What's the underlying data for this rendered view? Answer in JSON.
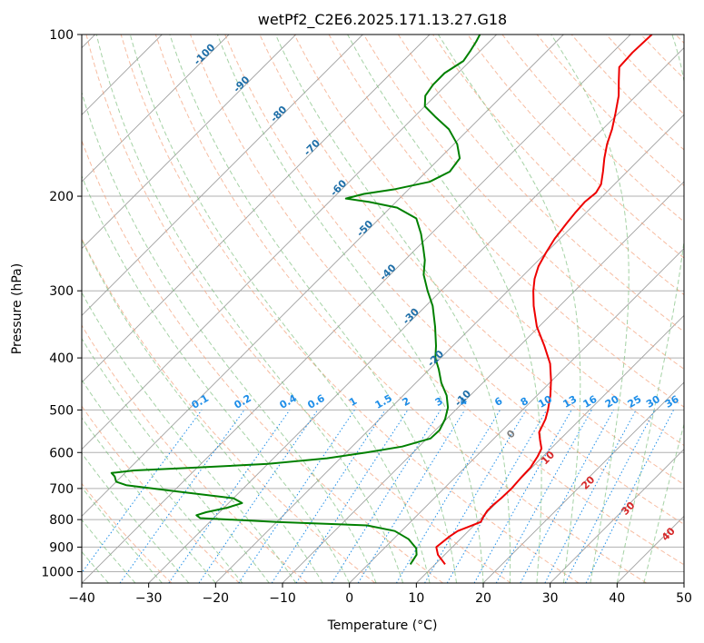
{
  "chart_data": {
    "type": "line",
    "title": "wetPf2_C2E6.2025.171.13.27.G18",
    "xlabel": "Temperature (°C)",
    "ylabel": "Pressure (hPa)",
    "xlim": [
      -40,
      50
    ],
    "ylim": [
      1050,
      100
    ],
    "y_scale": "log",
    "skew": true,
    "grid": true,
    "x_ticks": [
      -40,
      -30,
      -20,
      -10,
      0,
      10,
      20,
      30,
      40,
      50
    ],
    "y_ticks": [
      100,
      200,
      300,
      400,
      500,
      600,
      700,
      800,
      900,
      1000
    ],
    "isotherm_labels": [
      -100,
      -90,
      -80,
      -70,
      -60,
      -50,
      -40,
      -30,
      -20,
      -10
    ],
    "mixing_ratio_labels": [
      "0.1",
      "0.2",
      "0.4",
      "0.6",
      "1",
      "1.5",
      "2",
      "3",
      "4",
      "6",
      "8",
      "10",
      "13",
      "16",
      "20",
      "25",
      "30",
      "36"
    ],
    "mixing_ratio_values": [
      0.1,
      0.2,
      0.4,
      0.6,
      1,
      1.5,
      2,
      3,
      4,
      6,
      8,
      10,
      13,
      16,
      20,
      25,
      30,
      36
    ],
    "moist_adiabat_labels": [
      0,
      10,
      20,
      30,
      40
    ],
    "colors": {
      "temperature": "#ee0000",
      "dewpoint": "#008000",
      "dry_adiabat": "#f4a582",
      "moist_adiabat": "#7fbf7f",
      "mixing_ratio": "#1e8ee8",
      "isotherm": "#a0a0a0",
      "isobar": "#b0b0b0"
    },
    "series": [
      {
        "name": "",
        "role": "temperature",
        "points": [
          [
            969,
            11.5
          ],
          [
            930,
            9.0
          ],
          [
            900,
            7.6
          ],
          [
            880,
            7.8
          ],
          [
            860,
            8.0
          ],
          [
            840,
            8.4
          ],
          [
            822,
            9.6
          ],
          [
            808,
            10.5
          ],
          [
            790,
            10.1
          ],
          [
            770,
            9.8
          ],
          [
            750,
            9.8
          ],
          [
            730,
            10.0
          ],
          [
            700,
            10.1
          ],
          [
            670,
            9.9
          ],
          [
            640,
            9.8
          ],
          [
            610,
            9.2
          ],
          [
            590,
            8.6
          ],
          [
            570,
            7.2
          ],
          [
            550,
            5.8
          ],
          [
            520,
            4.8
          ],
          [
            500,
            3.8
          ],
          [
            470,
            2.0
          ],
          [
            440,
            -0.2
          ],
          [
            410,
            -2.8
          ],
          [
            380,
            -6.3
          ],
          [
            350,
            -10.3
          ],
          [
            320,
            -13.9
          ],
          [
            300,
            -16.2
          ],
          [
            285,
            -17.8
          ],
          [
            270,
            -19.1
          ],
          [
            255,
            -20.0
          ],
          [
            240,
            -20.8
          ],
          [
            225,
            -21.3
          ],
          [
            215,
            -21.6
          ],
          [
            205,
            -21.8
          ],
          [
            197,
            -21.5
          ],
          [
            190,
            -22.0
          ],
          [
            180,
            -23.6
          ],
          [
            170,
            -25.4
          ],
          [
            160,
            -27.1
          ],
          [
            150,
            -28.6
          ],
          [
            140,
            -30.5
          ],
          [
            130,
            -32.6
          ],
          [
            122,
            -34.8
          ],
          [
            115,
            -36.8
          ],
          [
            108,
            -37.0
          ],
          [
            100,
            -36.8
          ]
        ]
      },
      {
        "name": "",
        "role": "dewpoint",
        "points": [
          [
            969,
            6.3
          ],
          [
            930,
            5.8
          ],
          [
            905,
            4.8
          ],
          [
            870,
            2.3
          ],
          [
            840,
            -1.0
          ],
          [
            820,
            -6.0
          ],
          [
            808,
            -20.0
          ],
          [
            795,
            -32.0
          ],
          [
            785,
            -33.0
          ],
          [
            775,
            -32.0
          ],
          [
            760,
            -29.5
          ],
          [
            745,
            -28.0
          ],
          [
            730,
            -30.0
          ],
          [
            710,
            -39.0
          ],
          [
            690,
            -48.0
          ],
          [
            680,
            -50.0
          ],
          [
            665,
            -51.0
          ],
          [
            655,
            -52.0
          ],
          [
            648,
            -49.0
          ],
          [
            640,
            -40.0
          ],
          [
            630,
            -30.0
          ],
          [
            615,
            -22.0
          ],
          [
            600,
            -17.0
          ],
          [
            585,
            -12.5
          ],
          [
            565,
            -9.5
          ],
          [
            545,
            -9.4
          ],
          [
            520,
            -10.2
          ],
          [
            495,
            -11.5
          ],
          [
            470,
            -13.5
          ],
          [
            445,
            -16.2
          ],
          [
            420,
            -18.6
          ],
          [
            400,
            -20.8
          ],
          [
            380,
            -22.5
          ],
          [
            350,
            -25.5
          ],
          [
            320,
            -29.0
          ],
          [
            300,
            -32.0
          ],
          [
            280,
            -35.0
          ],
          [
            263,
            -37.0
          ],
          [
            250,
            -39.0
          ],
          [
            235,
            -41.5
          ],
          [
            220,
            -44.5
          ],
          [
            210,
            -49.0
          ],
          [
            205,
            -54.0
          ],
          [
            202,
            -58.0
          ],
          [
            198,
            -56.0
          ],
          [
            194,
            -52.0
          ],
          [
            188,
            -48.0
          ],
          [
            180,
            -46.5
          ],
          [
            170,
            -47.0
          ],
          [
            160,
            -49.5
          ],
          [
            150,
            -53.0
          ],
          [
            142,
            -57.0
          ],
          [
            136,
            -60.0
          ],
          [
            130,
            -61.5
          ],
          [
            124,
            -62.0
          ],
          [
            118,
            -62.0
          ],
          [
            112,
            -61.0
          ],
          [
            107,
            -61.5
          ],
          [
            103,
            -62.0
          ],
          [
            100,
            -62.5
          ]
        ]
      }
    ]
  }
}
